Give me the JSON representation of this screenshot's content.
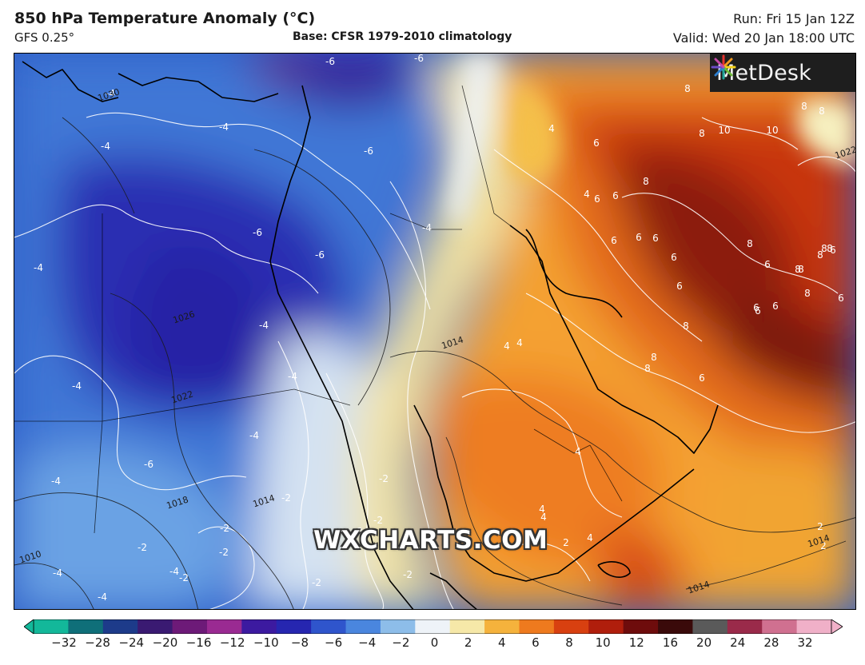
{
  "header": {
    "title": "850 hPa Temperature Anomaly (°C)",
    "model": "GFS 0.25°",
    "base": "Base: CFSR 1979-2010 climatology",
    "run": "Run: Fri 15 Jan 12Z",
    "valid": "Valid: Wed 20 Jan 18:00 UTC"
  },
  "logo": {
    "text": "MetDesk"
  },
  "watermark": {
    "text": "WXCHARTS.COM"
  },
  "colorbar": {
    "ticks": [
      "−32",
      "−28",
      "−24",
      "−20",
      "−16",
      "−12",
      "−10",
      "−8",
      "−6",
      "−4",
      "−2",
      "0",
      "2",
      "4",
      "6",
      "8",
      "10",
      "12",
      "16",
      "20",
      "24",
      "28",
      "32"
    ],
    "colors": [
      "#13b89a",
      "#0f6f79",
      "#1d3b8a",
      "#3a1a72",
      "#6d1a78",
      "#9a2a92",
      "#3c1aa0",
      "#2626b0",
      "#2f55cc",
      "#4a86de",
      "#8dbde9",
      "#eef3f8",
      "#f6e8a8",
      "#f5b23c",
      "#ee7a1e",
      "#d84010",
      "#b01e0c",
      "#6e0c0c",
      "#3a0a0a",
      "#5a5a5a",
      "#9a2a4a",
      "#d07090",
      "#f0b0c8"
    ]
  },
  "anomaly_labels": [
    {
      "v": "-6"
    },
    {
      "v": "-6"
    },
    {
      "v": "-4"
    },
    {
      "v": "-4"
    },
    {
      "v": "-4"
    },
    {
      "v": "-6"
    },
    {
      "v": "-6"
    },
    {
      "v": "-6"
    },
    {
      "v": "-4"
    },
    {
      "v": "-4"
    },
    {
      "v": "-4"
    },
    {
      "v": "-4"
    },
    {
      "v": "-4"
    },
    {
      "v": "-6"
    },
    {
      "v": "-4"
    },
    {
      "v": "-2"
    },
    {
      "v": "-2"
    },
    {
      "v": "-2"
    },
    {
      "v": "-2"
    },
    {
      "v": "-2"
    },
    {
      "v": "-2"
    },
    {
      "v": "-4"
    },
    {
      "v": "-4"
    },
    {
      "v": "-4"
    },
    {
      "v": "-2"
    },
    {
      "v": "-2"
    },
    {
      "v": "-4"
    },
    {
      "v": "-2"
    },
    {
      "v": "-2"
    },
    {
      "v": "-2"
    },
    {
      "v": "4"
    },
    {
      "v": "6"
    },
    {
      "v": "6"
    },
    {
      "v": "8"
    },
    {
      "v": "10"
    },
    {
      "v": "10"
    },
    {
      "v": "8"
    },
    {
      "v": "8"
    },
    {
      "v": "8"
    },
    {
      "v": "6"
    },
    {
      "v": "6"
    },
    {
      "v": "6"
    },
    {
      "v": "4"
    },
    {
      "v": "6"
    },
    {
      "v": "8"
    },
    {
      "v": "8"
    },
    {
      "v": "8"
    },
    {
      "v": "6"
    },
    {
      "v": "6"
    },
    {
      "v": "6"
    },
    {
      "v": "8"
    },
    {
      "v": "6"
    },
    {
      "v": "6"
    },
    {
      "v": "8"
    },
    {
      "v": "6"
    },
    {
      "v": "8"
    },
    {
      "v": "6"
    },
    {
      "v": "6"
    },
    {
      "v": "4"
    },
    {
      "v": "4"
    },
    {
      "v": "4"
    },
    {
      "v": "2"
    },
    {
      "v": "2"
    },
    {
      "v": "2"
    },
    {
      "v": "4"
    },
    {
      "v": "4"
    },
    {
      "v": "2"
    },
    {
      "v": "8"
    },
    {
      "v": "8"
    },
    {
      "v": "6"
    },
    {
      "v": "8"
    },
    {
      "v": "8"
    },
    {
      "v": "8"
    },
    {
      "v": "2"
    },
    {
      "v": "4"
    }
  ],
  "isobar_labels": [
    {
      "v": "1030"
    },
    {
      "v": "1026"
    },
    {
      "v": "1022"
    },
    {
      "v": "1018"
    },
    {
      "v": "1014"
    },
    {
      "v": "1010"
    },
    {
      "v": "1014"
    },
    {
      "v": "1014"
    },
    {
      "v": "1014"
    },
    {
      "v": "1022"
    }
  ]
}
